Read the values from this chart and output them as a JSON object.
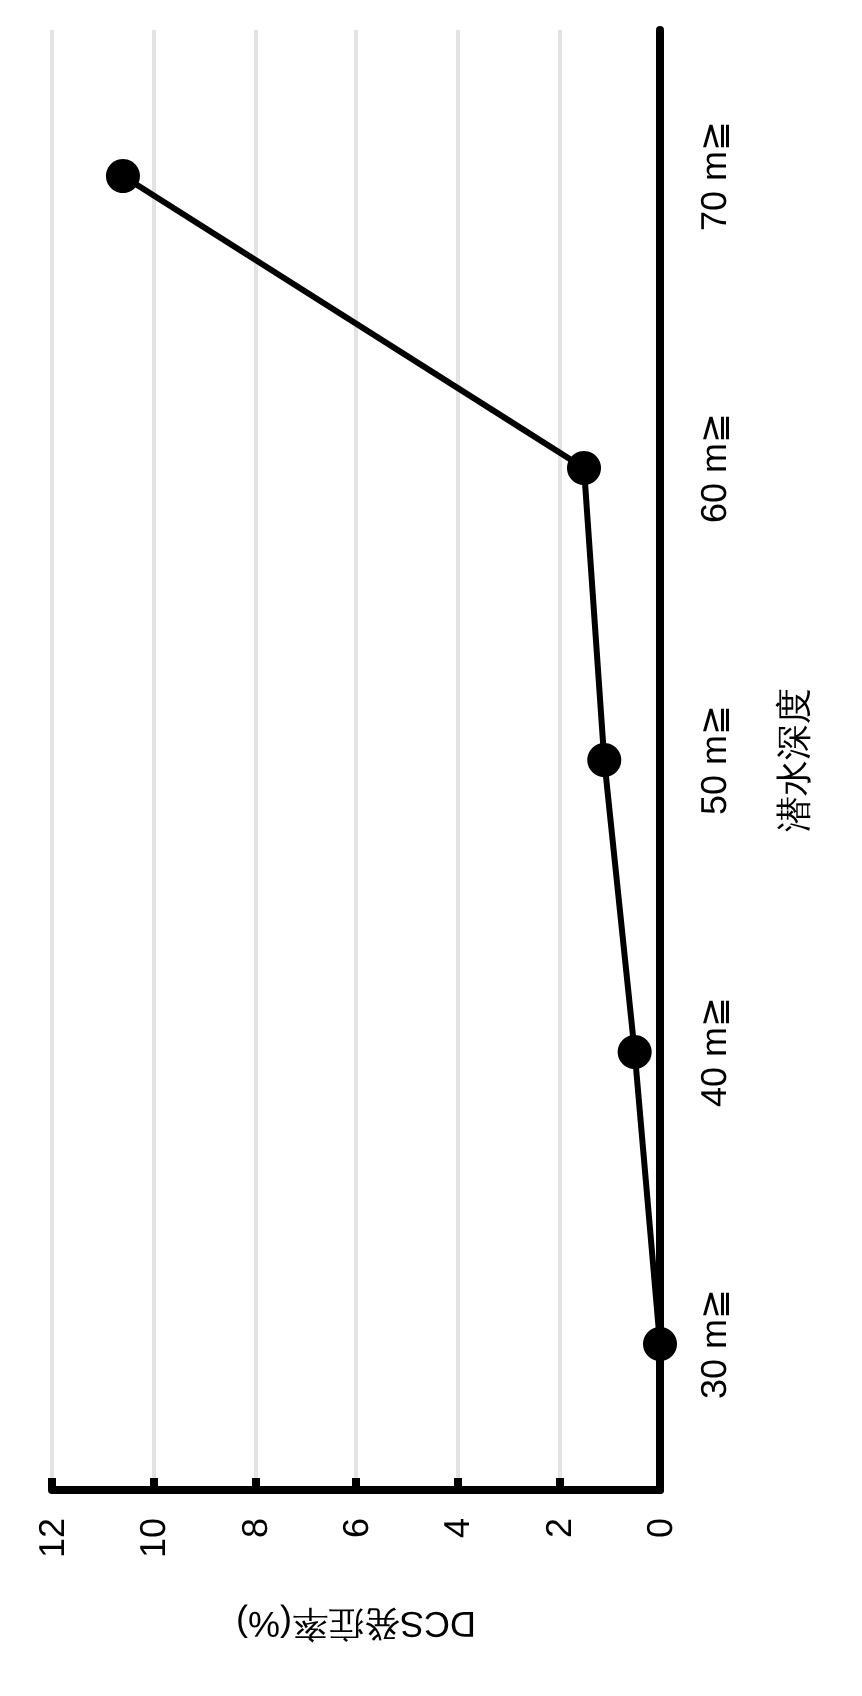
{
  "chart_data": {
    "type": "line",
    "orientation": "horizontal",
    "xlabel": "DCS発症率(%)",
    "ylabel": "潜水深度",
    "categories": [
      "70 m≧",
      "60 m≧",
      "50 m≧",
      "40 m≧",
      "30 m≧"
    ],
    "series": [
      {
        "color": "#000000",
        "values": [
          10.6,
          1.5,
          1.1,
          0.5,
          0
        ]
      }
    ],
    "xlim": [
      12,
      0
    ],
    "xticks": [
      12,
      10,
      8,
      6,
      4,
      2,
      0
    ],
    "grid": "x",
    "marker": "circle",
    "line_style": "solid"
  }
}
